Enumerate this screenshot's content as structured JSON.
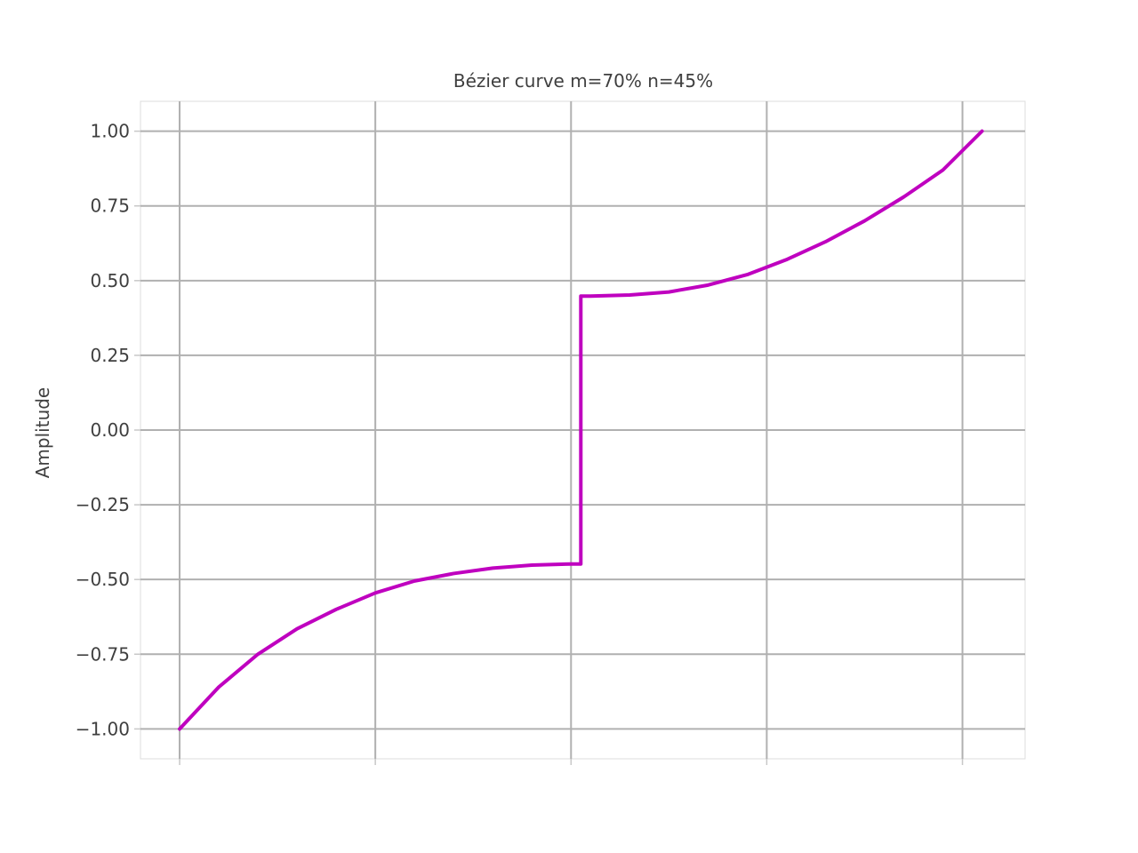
{
  "chart_data": {
    "type": "line",
    "title": "Bézier curve m=70% n=45%",
    "xlabel": "",
    "ylabel": "Amplitude",
    "xlim": [
      -0.1,
      2.16
    ],
    "ylim": [
      -1.1,
      1.1
    ],
    "yticks": [
      -1.0,
      -0.75,
      -0.5,
      -0.25,
      0.0,
      0.25,
      0.5,
      0.75,
      1.0
    ],
    "ytick_labels": [
      "−1.00",
      "−0.75",
      "−0.50",
      "−0.25",
      "0.00",
      "0.25",
      "0.50",
      "0.75",
      "1.00"
    ],
    "xticks": [
      0.0,
      0.5,
      1.0,
      1.5,
      2.0
    ],
    "xtick_labels": [
      "",
      "",
      "",
      "",
      ""
    ],
    "grid": true,
    "series": [
      {
        "color": "#bf00bf",
        "x": [
          0.0,
          0.1,
          0.2,
          0.3,
          0.4,
          0.5,
          0.6,
          0.7,
          0.8,
          0.9,
          1.0,
          1.025,
          1.025,
          1.05,
          1.15,
          1.25,
          1.35,
          1.45,
          1.55,
          1.65,
          1.75,
          1.85,
          1.95,
          2.05
        ],
        "y": [
          -1.0,
          -0.86,
          -0.75,
          -0.665,
          -0.6,
          -0.545,
          -0.505,
          -0.48,
          -0.462,
          -0.452,
          -0.448,
          -0.448,
          0.448,
          0.448,
          0.452,
          0.462,
          0.485,
          0.52,
          0.57,
          0.63,
          0.7,
          0.78,
          0.87,
          1.0
        ]
      }
    ]
  }
}
